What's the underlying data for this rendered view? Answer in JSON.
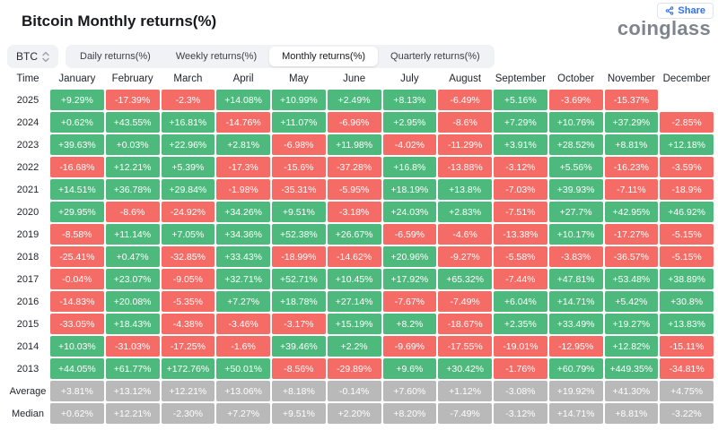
{
  "header": {
    "title": "Bitcoin Monthly returns(%)",
    "logo_text": "coinglass",
    "share_label": "Share"
  },
  "toolbar": {
    "coin_selector": {
      "label": "BTC"
    },
    "tabs": [
      {
        "label": "Daily returns(%)",
        "active": false
      },
      {
        "label": "Weekly returns(%)",
        "active": false
      },
      {
        "label": "Monthly returns(%)",
        "active": true
      },
      {
        "label": "Quarterly returns(%)",
        "active": false
      }
    ]
  },
  "table": {
    "time_header": "Time",
    "months": [
      "January",
      "February",
      "March",
      "April",
      "May",
      "June",
      "July",
      "August",
      "September",
      "October",
      "November",
      "December"
    ],
    "rows": [
      {
        "label": "2025",
        "values": [
          "+9.29%",
          "-17.39%",
          "-2.3%",
          "+14.08%",
          "+10.99%",
          "+2.49%",
          "+8.13%",
          "-6.49%",
          "+5.16%",
          "-3.69%",
          "-15.37%",
          ""
        ],
        "colors": [
          "g",
          "r",
          "r",
          "g",
          "g",
          "g",
          "g",
          "r",
          "g",
          "r",
          "r",
          ""
        ]
      },
      {
        "label": "2024",
        "values": [
          "+0.62%",
          "+43.55%",
          "+16.81%",
          "-14.76%",
          "+11.07%",
          "-6.96%",
          "+2.95%",
          "-8.6%",
          "+7.29%",
          "+10.76%",
          "+37.29%",
          "-2.85%"
        ],
        "colors": [
          "g",
          "g",
          "g",
          "r",
          "g",
          "r",
          "g",
          "r",
          "g",
          "g",
          "g",
          "r"
        ]
      },
      {
        "label": "2023",
        "values": [
          "+39.63%",
          "+0.03%",
          "+22.96%",
          "+2.81%",
          "-6.98%",
          "+11.98%",
          "-4.02%",
          "-11.29%",
          "+3.91%",
          "+28.52%",
          "+8.81%",
          "+12.18%"
        ],
        "colors": [
          "g",
          "g",
          "g",
          "g",
          "r",
          "g",
          "r",
          "r",
          "g",
          "g",
          "g",
          "g"
        ]
      },
      {
        "label": "2022",
        "values": [
          "-16.68%",
          "+12.21%",
          "+5.39%",
          "-17.3%",
          "-15.6%",
          "-37.28%",
          "+16.8%",
          "-13.88%",
          "-3.12%",
          "+5.56%",
          "-16.23%",
          "-3.59%"
        ],
        "colors": [
          "r",
          "g",
          "g",
          "r",
          "r",
          "r",
          "g",
          "r",
          "r",
          "g",
          "r",
          "r"
        ]
      },
      {
        "label": "2021",
        "values": [
          "+14.51%",
          "+36.78%",
          "+29.84%",
          "-1.98%",
          "-35.31%",
          "-5.95%",
          "+18.19%",
          "+13.8%",
          "-7.03%",
          "+39.93%",
          "-7.11%",
          "-18.9%"
        ],
        "colors": [
          "g",
          "g",
          "g",
          "r",
          "r",
          "r",
          "g",
          "g",
          "r",
          "g",
          "r",
          "r"
        ]
      },
      {
        "label": "2020",
        "values": [
          "+29.95%",
          "-8.6%",
          "-24.92%",
          "+34.26%",
          "+9.51%",
          "-3.18%",
          "+24.03%",
          "+2.83%",
          "-7.51%",
          "+27.7%",
          "+42.95%",
          "+46.92%"
        ],
        "colors": [
          "g",
          "r",
          "r",
          "g",
          "g",
          "r",
          "g",
          "g",
          "r",
          "g",
          "g",
          "g"
        ]
      },
      {
        "label": "2019",
        "values": [
          "-8.58%",
          "+11.14%",
          "+7.05%",
          "+34.36%",
          "+52.38%",
          "+26.67%",
          "-6.59%",
          "-4.6%",
          "-13.38%",
          "+10.17%",
          "-17.27%",
          "-5.15%"
        ],
        "colors": [
          "r",
          "g",
          "g",
          "g",
          "g",
          "g",
          "r",
          "r",
          "r",
          "g",
          "r",
          "r"
        ]
      },
      {
        "label": "2018",
        "values": [
          "-25.41%",
          "+0.47%",
          "-32.85%",
          "+33.43%",
          "-18.99%",
          "-14.62%",
          "+20.96%",
          "-9.27%",
          "-5.58%",
          "-3.83%",
          "-36.57%",
          "-5.15%"
        ],
        "colors": [
          "r",
          "g",
          "r",
          "g",
          "r",
          "r",
          "g",
          "r",
          "r",
          "r",
          "r",
          "r"
        ]
      },
      {
        "label": "2017",
        "values": [
          "-0.04%",
          "+23.07%",
          "-9.05%",
          "+32.71%",
          "+52.71%",
          "+10.45%",
          "+17.92%",
          "+65.32%",
          "-7.44%",
          "+47.81%",
          "+53.48%",
          "+38.89%"
        ],
        "colors": [
          "r",
          "g",
          "r",
          "g",
          "g",
          "g",
          "g",
          "g",
          "r",
          "g",
          "g",
          "g"
        ]
      },
      {
        "label": "2016",
        "values": [
          "-14.83%",
          "+20.08%",
          "-5.35%",
          "+7.27%",
          "+18.78%",
          "+27.14%",
          "-7.67%",
          "-7.49%",
          "+6.04%",
          "+14.71%",
          "+5.42%",
          "+30.8%"
        ],
        "colors": [
          "r",
          "g",
          "r",
          "g",
          "g",
          "g",
          "r",
          "r",
          "g",
          "g",
          "g",
          "g"
        ]
      },
      {
        "label": "2015",
        "values": [
          "-33.05%",
          "+18.43%",
          "-4.38%",
          "-3.46%",
          "-3.17%",
          "+15.19%",
          "+8.2%",
          "-18.67%",
          "+2.35%",
          "+33.49%",
          "+19.27%",
          "+13.83%"
        ],
        "colors": [
          "r",
          "g",
          "r",
          "r",
          "r",
          "g",
          "g",
          "r",
          "g",
          "g",
          "g",
          "g"
        ]
      },
      {
        "label": "2014",
        "values": [
          "+10.03%",
          "-31.03%",
          "-17.25%",
          "-1.6%",
          "+39.46%",
          "+2.2%",
          "-9.69%",
          "-17.55%",
          "-19.01%",
          "-12.95%",
          "+12.82%",
          "-15.11%"
        ],
        "colors": [
          "g",
          "r",
          "r",
          "r",
          "g",
          "g",
          "r",
          "r",
          "r",
          "r",
          "g",
          "r"
        ]
      },
      {
        "label": "2013",
        "values": [
          "+44.05%",
          "+61.77%",
          "+172.76%",
          "+50.01%",
          "-8.56%",
          "-29.89%",
          "+9.6%",
          "+30.42%",
          "-1.76%",
          "+60.79%",
          "+449.35%",
          "-34.81%"
        ],
        "colors": [
          "g",
          "g",
          "g",
          "g",
          "r",
          "r",
          "g",
          "g",
          "r",
          "g",
          "g",
          "r"
        ]
      },
      {
        "label": "Average",
        "values": [
          "+3.81%",
          "+13.12%",
          "+12.21%",
          "+13.06%",
          "+8.18%",
          "-0.14%",
          "+7.60%",
          "+1.12%",
          "-3.08%",
          "+19.92%",
          "+41.30%",
          "+4.75%"
        ],
        "colors": [
          "n",
          "n",
          "n",
          "n",
          "n",
          "n",
          "n",
          "n",
          "n",
          "n",
          "n",
          "n"
        ]
      },
      {
        "label": "Median",
        "values": [
          "+0.62%",
          "+12.21%",
          "-2.30%",
          "+7.27%",
          "+9.51%",
          "+2.20%",
          "+8.20%",
          "-7.49%",
          "-3.12%",
          "+14.71%",
          "+8.81%",
          "-3.22%"
        ],
        "colors": [
          "n",
          "n",
          "n",
          "n",
          "n",
          "n",
          "n",
          "n",
          "n",
          "n",
          "n",
          "n"
        ]
      }
    ]
  },
  "colors": {
    "positive": "#4EB97D",
    "negative": "#F56C66",
    "neutral": "#B9B9B9",
    "accent": "#3370EB",
    "logo": "#7E848D"
  }
}
